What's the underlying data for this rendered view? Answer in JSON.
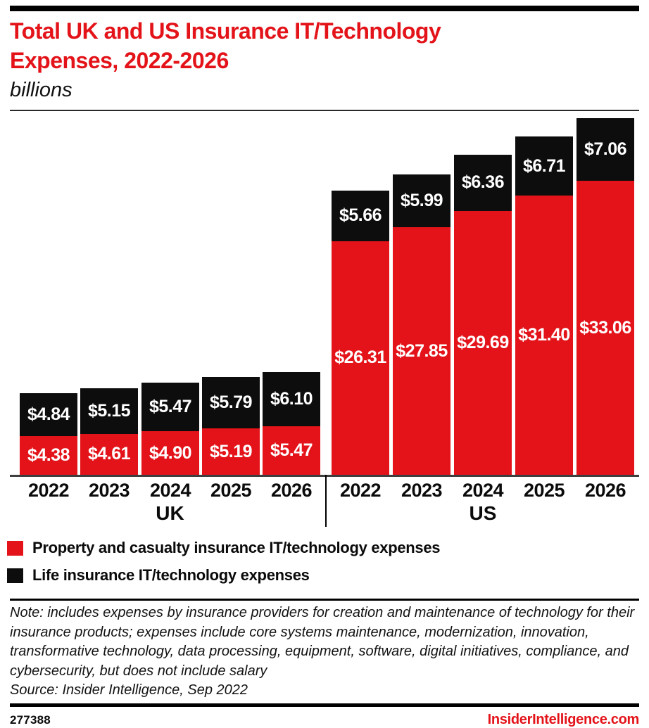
{
  "header": {
    "title_line1": "Total UK and US Insurance IT/Technology",
    "title_line2": "Expenses, 2022-2026",
    "subtitle": "billions"
  },
  "chart_data": {
    "type": "bar",
    "stacked": true,
    "title": "Total UK and US Insurance IT/Technology Expenses, 2022-2026",
    "unit_note": "billions",
    "categories": [
      "2022",
      "2023",
      "2024",
      "2025",
      "2026"
    ],
    "legend_position": "bottom-left",
    "grid": false,
    "y_axis_shown": false,
    "groups": [
      {
        "label": "UK",
        "series": [
          {
            "name": "Property and casualty insurance IT/technology expenses",
            "color": "#e31319",
            "values": [
              4.38,
              4.61,
              4.9,
              5.19,
              5.47
            ],
            "labels": [
              "$4.38",
              "$4.61",
              "$4.90",
              "$5.19",
              "$5.47"
            ]
          },
          {
            "name": "Life insurance IT/technology expenses",
            "color": "#0d0d0d",
            "values": [
              4.84,
              5.15,
              5.47,
              5.79,
              6.1
            ],
            "labels": [
              "$4.84",
              "$5.15",
              "$5.47",
              "$5.79",
              "$6.10"
            ]
          }
        ]
      },
      {
        "label": "US",
        "series": [
          {
            "name": "Property and casualty insurance IT/technology expenses",
            "color": "#e31319",
            "values": [
              26.31,
              27.85,
              29.69,
              31.4,
              33.06
            ],
            "labels": [
              "$26.31",
              "$27.85",
              "$29.69",
              "$31.40",
              "$33.06"
            ]
          },
          {
            "name": "Life insurance IT/technology expenses",
            "color": "#0d0d0d",
            "values": [
              5.66,
              5.99,
              6.36,
              6.71,
              7.06
            ],
            "labels": [
              "$5.66",
              "$5.99",
              "$6.36",
              "$6.71",
              "$7.06"
            ]
          }
        ]
      }
    ]
  },
  "legend": {
    "items": [
      {
        "label": "Property and casualty insurance IT/technology expenses",
        "color": "#e31319"
      },
      {
        "label": "Life insurance IT/technology expenses",
        "color": "#0d0d0d"
      }
    ]
  },
  "footnote": {
    "note": "Note: includes expenses by insurance providers for creation and maintenance of technology for their insurance products; expenses include core systems maintenance, modernization, innovation, transformative technology, data processing, equipment, software, digital initiatives, compliance, and cybersecurity, but does not include salary",
    "source": "Source: Insider Intelligence, Sep 2022"
  },
  "footer": {
    "chart_id": "277388",
    "brand": "InsiderIntelligence.com"
  }
}
